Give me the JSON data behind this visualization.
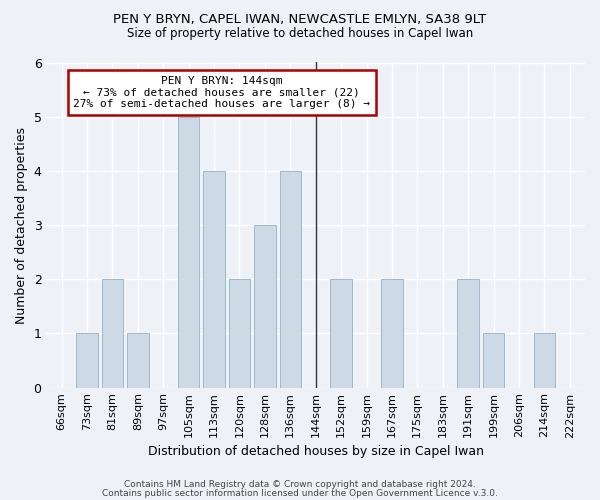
{
  "title1": "PEN Y BRYN, CAPEL IWAN, NEWCASTLE EMLYN, SA38 9LT",
  "title2": "Size of property relative to detached houses in Capel Iwan",
  "xlabel": "Distribution of detached houses by size in Capel Iwan",
  "ylabel": "Number of detached properties",
  "bins": [
    "66sqm",
    "73sqm",
    "81sqm",
    "89sqm",
    "97sqm",
    "105sqm",
    "113sqm",
    "120sqm",
    "128sqm",
    "136sqm",
    "144sqm",
    "152sqm",
    "159sqm",
    "167sqm",
    "175sqm",
    "183sqm",
    "191sqm",
    "199sqm",
    "206sqm",
    "214sqm",
    "222sqm"
  ],
  "counts": [
    0,
    1,
    2,
    1,
    0,
    5,
    4,
    2,
    3,
    4,
    0,
    2,
    0,
    2,
    0,
    0,
    2,
    1,
    0,
    1,
    0
  ],
  "bar_color": "#cdd9e5",
  "bar_edge_color": "#9db8cc",
  "marker_bin_index": 10,
  "annotation_title": "PEN Y BRYN: 144sqm",
  "annotation_line1": "← 73% of detached houses are smaller (22)",
  "annotation_line2": "27% of semi-detached houses are larger (8) →",
  "annotation_box_color": "#ffffff",
  "annotation_box_edge": "#aa0000",
  "marker_line_color": "#333333",
  "ylim": [
    0,
    6
  ],
  "yticks": [
    0,
    1,
    2,
    3,
    4,
    5,
    6
  ],
  "footer1": "Contains HM Land Registry data © Crown copyright and database right 2024.",
  "footer2": "Contains public sector information licensed under the Open Government Licence v.3.0.",
  "background_color": "#eef2f7",
  "plot_bg_color": "#eef2f7",
  "grid_color": "#ffffff"
}
